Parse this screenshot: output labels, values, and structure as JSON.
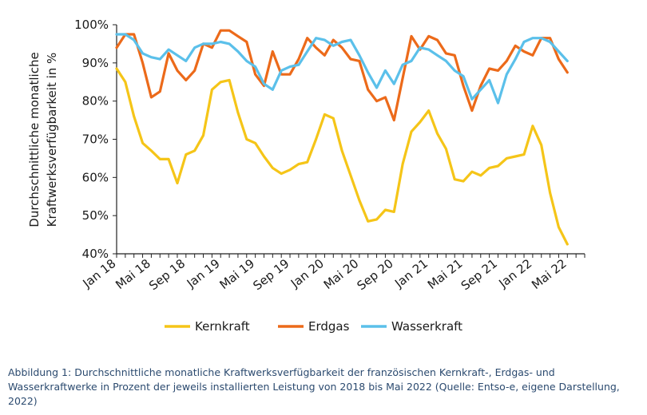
{
  "chart_data": {
    "type": "line",
    "title": "",
    "ylabel_line1": "Durchschnittliche monatliche",
    "ylabel_line2": "Kraftwerksverfügbarkeit in %",
    "xlabel": "",
    "ylim": [
      40,
      100
    ],
    "yticks": [
      40,
      50,
      60,
      70,
      80,
      90,
      100
    ],
    "ytick_labels": [
      "40%",
      "50%",
      "60%",
      "70%",
      "80%",
      "90%",
      "100%"
    ],
    "x_months": 54,
    "xtick_positions": [
      0,
      4,
      8,
      12,
      16,
      20,
      24,
      28,
      32,
      36,
      40,
      44,
      48,
      52
    ],
    "xtick_labels": [
      "Jan 18",
      "Mai 18",
      "Sep 18",
      "Jan 19",
      "Mai 19",
      "Sep 19",
      "Jan 20",
      "Mai 20",
      "Sep 20",
      "Jan 21",
      "Mai 21",
      "Sep 21",
      "Jan 22",
      "Mai 22"
    ],
    "grid": false,
    "legend_position": "bottom",
    "series": [
      {
        "name": "Kernkraft",
        "color": "#f5c518",
        "values": [
          88.5,
          85,
          76,
          69,
          67,
          64.8,
          64.8,
          58.5,
          66,
          67,
          71,
          83,
          85,
          85.5,
          77,
          70,
          69,
          65.5,
          62.5,
          61,
          62,
          63.5,
          64,
          70,
          76.5,
          75.5,
          67,
          60.5,
          54,
          48.5,
          49,
          51.5,
          51,
          63.5,
          72,
          74.5,
          77.5,
          71.5,
          67.5,
          59.5,
          59,
          61.5,
          60.5,
          62.5,
          63,
          65,
          65.5,
          66,
          73.5,
          68.5,
          56,
          47,
          42.5
        ]
      },
      {
        "name": "Erdgas",
        "color": "#ec6a1a",
        "values": [
          94,
          97.5,
          97.5,
          90,
          81,
          82.5,
          92.5,
          88,
          85.5,
          88,
          95,
          94,
          98.5,
          98.5,
          97,
          95.5,
          87,
          84,
          93,
          87,
          87,
          91,
          96.5,
          94,
          92,
          96,
          94,
          91,
          90.5,
          83,
          80,
          81,
          75,
          86,
          97,
          93.5,
          97,
          96,
          92.5,
          92,
          84,
          77.5,
          84,
          88.5,
          88,
          90.5,
          94.5,
          93,
          92,
          96.5,
          96.5,
          91,
          87.5
        ]
      },
      {
        "name": "Wasserkraft",
        "color": "#5bc0ea",
        "values": [
          97.5,
          97.5,
          96,
          92.5,
          91.5,
          91,
          93.5,
          92,
          90.5,
          94,
          95,
          95,
          95.5,
          95,
          93,
          90.5,
          89,
          84.5,
          83,
          88,
          89,
          89.5,
          93,
          96.5,
          96,
          94.5,
          95.5,
          96,
          92,
          87.5,
          83.5,
          88,
          84.5,
          89.5,
          90.5,
          94,
          93.5,
          92,
          90.5,
          88,
          86.5,
          80.5,
          83,
          85.5,
          79.5,
          87,
          91,
          95.5,
          96.5,
          96.5,
          95.5,
          93,
          90.5
        ]
      }
    ]
  },
  "caption": "Abbildung 1: Durchschnittliche monatliche Kraftwerksverfügbarkeit der französischen Kernkraft-, Erdgas- und Wasserkraftwerke in Prozent der jeweils installierten Leistung von 2018 bis Mai 2022 (Quelle: Entso-e, eigene Darstellung, 2022)"
}
